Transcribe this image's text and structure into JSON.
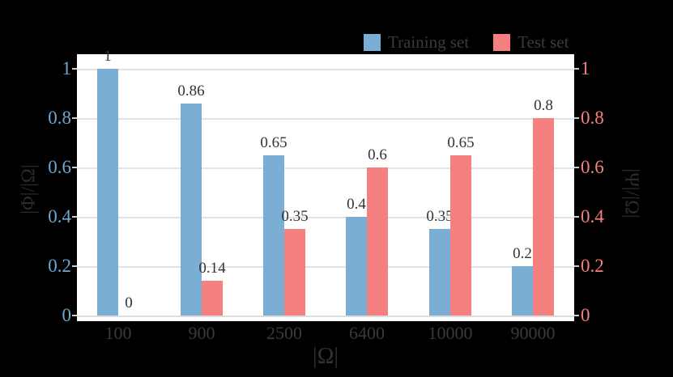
{
  "figure": {
    "background": "#000000",
    "plot_background": "#ffffff",
    "gridline_color": "#e3e3e3"
  },
  "legend": {
    "position": "top-right",
    "items": [
      {
        "label": "Training set",
        "color": "#7aaed4"
      },
      {
        "label": "Test set",
        "color": "#f48080"
      }
    ]
  },
  "chart_data": {
    "type": "bar",
    "title": "",
    "xlabel": "|Ω|",
    "ylabel_left": "|Φ|/|Ω|",
    "ylabel_right": "|Ψ|/|Ω|",
    "categories": [
      "100",
      "900",
      "2500",
      "6400",
      "10000",
      "90000"
    ],
    "series": [
      {
        "name": "Training set",
        "color": "#7aaed4",
        "axis": "left",
        "values": [
          1,
          0.86,
          0.65,
          0.4,
          0.35,
          0.2
        ],
        "value_labels": [
          "1",
          "0.86",
          "0.65",
          "0.4",
          "0.35",
          "0.2"
        ]
      },
      {
        "name": "Test set",
        "color": "#f48080",
        "axis": "right",
        "values": [
          0,
          0.14,
          0.35,
          0.6,
          0.65,
          0.8
        ],
        "value_labels": [
          "0",
          "0.14",
          "0.35",
          "0.6",
          "0.65",
          "0.8"
        ]
      }
    ],
    "ylim": [
      0,
      1.08
    ],
    "yticks": [
      0,
      0.2,
      0.4,
      0.6,
      0.8,
      1
    ],
    "ytick_labels": [
      "0",
      "0.2",
      "0.4",
      "0.6",
      "0.8",
      "1"
    ],
    "left_tick_color": "#6fa7d0",
    "right_tick_color": "#f48080",
    "grid": true,
    "legend_position": "top-right"
  }
}
